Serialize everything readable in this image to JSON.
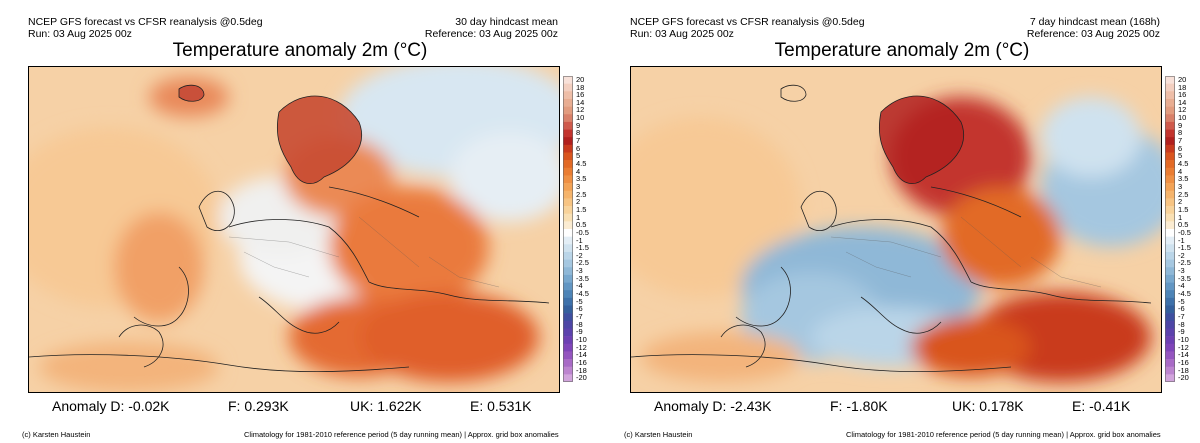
{
  "colorbar_ticks": [
    "20",
    "18",
    "16",
    "14",
    "12",
    "10",
    "9",
    "8",
    "7",
    "6",
    "5",
    "4.5",
    "4",
    "3.5",
    "3",
    "2.5",
    "2",
    "1.5",
    "1",
    "0.5",
    "-0.5",
    "-1",
    "-1.5",
    "-2",
    "-2.5",
    "-3",
    "-3.5",
    "-4",
    "-4.5",
    "-5",
    "-6",
    "-7",
    "-8",
    "-9",
    "-10",
    "-12",
    "-14",
    "-16",
    "-18",
    "-20"
  ],
  "colorbar_colors": [
    "#f8e1d9",
    "#f3cfc0",
    "#eebea8",
    "#e8ad92",
    "#e29c7f",
    "#d9816a",
    "#cf5a4c",
    "#c3342e",
    "#b1201e",
    "#c93a1e",
    "#d9551f",
    "#e26a26",
    "#ea7d33",
    "#ef9044",
    "#f3a356",
    "#f5b46c",
    "#f7c483",
    "#f8d39b",
    "#f9e0b4",
    "#fbecd2",
    "#ffffff",
    "#e3eef6",
    "#cfe2ef",
    "#bad5e8",
    "#a5c7e0",
    "#8fb8d7",
    "#78a8ce",
    "#6296c3",
    "#4d84b7",
    "#3e71aa",
    "#34609d",
    "#3e4fa0",
    "#4d46a6",
    "#5c42ad",
    "#6d40b3",
    "#7f45b9",
    "#9455bf",
    "#a86ac6",
    "#bc84cf",
    "#d1a4dc"
  ],
  "panels": [
    {
      "model": "NCEP GFS forecast vs CFSR reanalysis @0.5deg",
      "run": "Run: 03 Aug 2025 00z",
      "period": "30 day hindcast mean",
      "reference": "Reference: 03 Aug 2025 00z",
      "title": "Temperature anomaly 2m (°C)",
      "stats": {
        "d": "Anomaly D: -0.02K",
        "f": "F: 0.293K",
        "uk": "UK: 1.622K",
        "e": "E: 0.531K"
      },
      "credit": "(c) Karsten Haustein",
      "climatology": "Climatology for 1981-2010 reference period (5 day running mean) | Approx. grid box anomalies"
    },
    {
      "model": "NCEP GFS forecast vs CFSR reanalysis @0.5deg",
      "run": "Run: 03 Aug 2025 00z",
      "period": "7 day hindcast mean (168h)",
      "reference": "Reference: 03 Aug 2025 00z",
      "title": "Temperature anomaly 2m (°C)",
      "stats": {
        "d": "Anomaly D: -2.43K",
        "f": "F: -1.80K",
        "uk": "UK: 0.178K",
        "e": "E: -0.41K"
      },
      "credit": "(c) Karsten Haustein",
      "climatology": "Climatology for 1981-2010 reference period (5 day running mean) | Approx. grid box anomalies"
    }
  ]
}
